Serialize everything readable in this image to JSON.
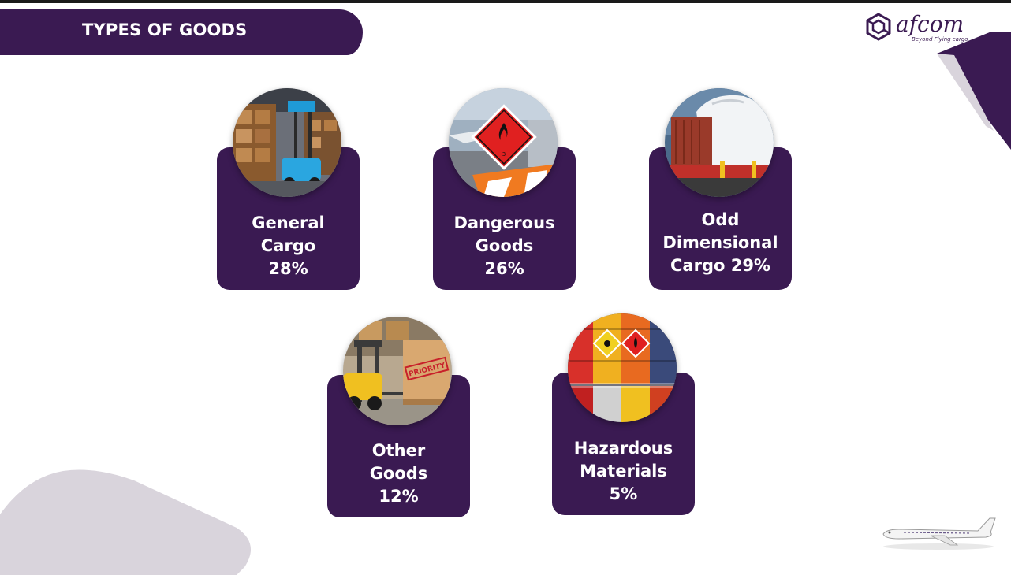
{
  "header": {
    "title": "TYPES OF GOODS"
  },
  "logo": {
    "name": "afcom",
    "tagline": "Beyond Flying cargo"
  },
  "colors": {
    "brand_purple": "#3a1a52",
    "background": "#ffffff",
    "decor_grey": "#d9d4dc"
  },
  "cards": [
    {
      "lines": [
        "General",
        "Cargo",
        "28%"
      ],
      "percent": 28,
      "image": "warehouse-forklift-photo"
    },
    {
      "lines": [
        "Dangerous",
        "Goods",
        "26%"
      ],
      "percent": 26,
      "image": "hazard-sign-photo"
    },
    {
      "lines": [
        "Odd",
        "Dimensional",
        "Cargo 29%"
      ],
      "percent": 29,
      "image": "oversized-cargo-photo"
    },
    {
      "lines": [
        "Other",
        "Goods",
        "12%"
      ],
      "percent": 12,
      "image": "priority-box-forklift-photo"
    },
    {
      "lines": [
        "Hazardous",
        "Materials",
        "5%"
      ],
      "percent": 5,
      "image": "chemical-drums-photo"
    }
  ]
}
